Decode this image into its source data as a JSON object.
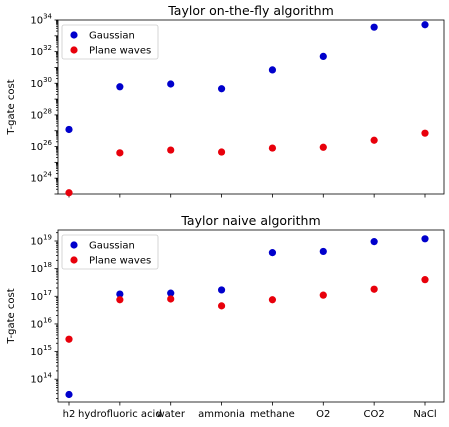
{
  "chart_data": [
    {
      "type": "scatter",
      "title": "Taylor on-the-fly algorithm",
      "xlabel": "",
      "ylabel": "T-gate cost",
      "yscale": "log",
      "ylim": [
        1e+23,
        1e+34
      ],
      "y_ticks": [
        {
          "value": 1e+24,
          "base": "10",
          "exp": "24"
        },
        {
          "value": 1e+26,
          "base": "10",
          "exp": "26"
        },
        {
          "value": 1e+28,
          "base": "10",
          "exp": "28"
        },
        {
          "value": 1e+30,
          "base": "10",
          "exp": "30"
        },
        {
          "value": 1e+32,
          "base": "10",
          "exp": "32"
        },
        {
          "value": 1e+34,
          "base": "10",
          "exp": "34"
        }
      ],
      "show_x_tick_labels": false,
      "legend_position": "upper-left",
      "categories": [
        "h2",
        "hydrofluoric acid",
        "water",
        "ammonia",
        "methane",
        "O2",
        "CO2",
        "NaCl"
      ],
      "series": [
        {
          "name": "Gaussian",
          "color": "#0000cc",
          "values": [
            1.2e+27,
            6e+29,
            9e+29,
            4.5e+29,
            7e+30,
            5e+31,
            3.5e+33,
            5e+33
          ]
        },
        {
          "name": "Plane waves",
          "color": "#e8000b",
          "values": [
            1.2e+23,
            4e+25,
            6e+25,
            4.5e+25,
            8e+25,
            9e+25,
            2.5e+26,
            7e+26
          ]
        }
      ]
    },
    {
      "type": "scatter",
      "title": "Taylor naive algorithm",
      "xlabel": "",
      "ylabel": "T-gate cost",
      "yscale": "log",
      "ylim": [
        15000000000000.0,
        2.5e+19
      ],
      "y_ticks": [
        {
          "value": 100000000000000.0,
          "base": "10",
          "exp": "14"
        },
        {
          "value": 1000000000000000.0,
          "base": "10",
          "exp": "15"
        },
        {
          "value": 1e+16,
          "base": "10",
          "exp": "16"
        },
        {
          "value": 1e+17,
          "base": "10",
          "exp": "17"
        },
        {
          "value": 1e+18,
          "base": "10",
          "exp": "18"
        },
        {
          "value": 1e+19,
          "base": "10",
          "exp": "19"
        }
      ],
      "show_x_tick_labels": true,
      "legend_position": "upper-left",
      "categories": [
        "h2",
        "hydrofluoric acid",
        "water",
        "ammonia",
        "methane",
        "O2",
        "CO2",
        "NaCl"
      ],
      "series": [
        {
          "name": "Gaussian",
          "color": "#0000cc",
          "values": [
            28000000000000.0,
            1.2e+17,
            1.3e+17,
            1.7e+17,
            3.8e+18,
            4.2e+18,
            9.5e+18,
            1.2e+19
          ]
        },
        {
          "name": "Plane waves",
          "color": "#e8000b",
          "values": [
            2800000000000000.0,
            7.5e+16,
            8e+16,
            4.5e+16,
            7.5e+16,
            1.1e+17,
            1.8e+17,
            4e+17
          ]
        }
      ]
    }
  ]
}
